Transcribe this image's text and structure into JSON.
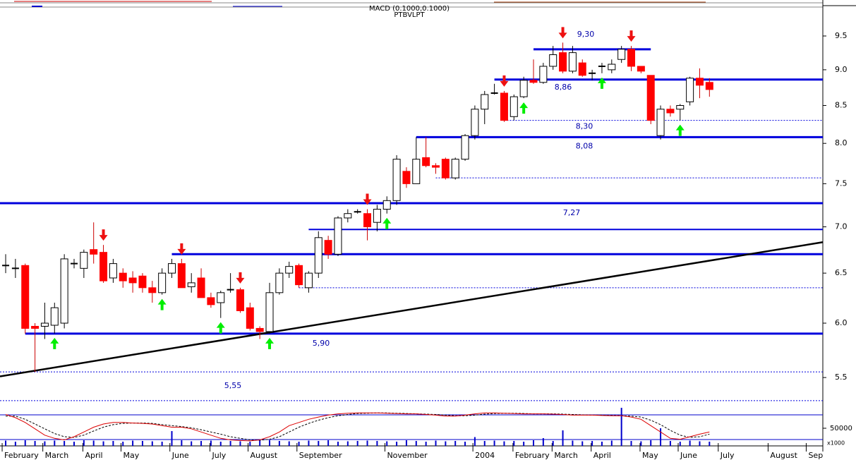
{
  "chart_data": {
    "type": "candlestick",
    "title": "MACD (0.1000,0.1000)",
    "subtitle": "PTBVLPT",
    "x": [
      0,
      1,
      2,
      3,
      4,
      5,
      6,
      7,
      8,
      9,
      10,
      11,
      12,
      13,
      14,
      15,
      16,
      17,
      18,
      19,
      20,
      21,
      22,
      23,
      24,
      25,
      26,
      27,
      28,
      29,
      30,
      31,
      32,
      33,
      34,
      35,
      36,
      37,
      38,
      39,
      40,
      41,
      42,
      43,
      44,
      45,
      46,
      47,
      48,
      49,
      50,
      51,
      52,
      53,
      54,
      55,
      56,
      57,
      58,
      59,
      60,
      61,
      62,
      63,
      64,
      65,
      66,
      67,
      68,
      69,
      70,
      71,
      72
    ],
    "open": [
      6.58,
      6.55,
      6.58,
      5.97,
      5.97,
      5.98,
      6.0,
      6.6,
      6.55,
      6.75,
      6.72,
      6.45,
      6.5,
      6.45,
      6.47,
      6.35,
      6.3,
      6.5,
      6.6,
      6.36,
      6.45,
      6.25,
      6.2,
      6.33,
      6.33,
      6.15,
      5.95,
      5.92,
      6.3,
      6.5,
      6.58,
      6.35,
      6.5,
      6.85,
      6.7,
      7.1,
      7.17,
      7.15,
      7.05,
      7.2,
      7.3,
      7.65,
      7.5,
      7.82,
      7.72,
      7.8,
      7.57,
      7.8,
      8.1,
      8.45,
      8.67,
      8.67,
      8.35,
      8.62,
      8.85,
      8.82,
      9.05,
      9.25,
      8.98,
      9.1,
      8.95,
      9.05,
      9.0,
      9.15,
      9.3,
      9.05,
      8.92,
      8.1,
      8.45,
      8.45,
      8.55,
      8.88,
      8.82
    ],
    "high": [
      6.7,
      6.65,
      6.6,
      6.0,
      6.2,
      6.2,
      6.7,
      6.65,
      6.75,
      7.05,
      6.8,
      6.65,
      6.55,
      6.52,
      6.5,
      6.42,
      6.55,
      6.65,
      6.65,
      6.5,
      6.55,
      6.3,
      6.32,
      6.5,
      6.35,
      6.2,
      5.97,
      6.4,
      6.55,
      6.62,
      6.6,
      6.52,
      6.95,
      6.9,
      7.12,
      7.2,
      7.2,
      7.2,
      7.25,
      7.35,
      7.85,
      7.7,
      8.08,
      8.08,
      7.75,
      7.82,
      7.82,
      8.12,
      8.5,
      8.7,
      8.8,
      8.7,
      8.65,
      8.9,
      9.15,
      9.1,
      9.35,
      9.4,
      9.35,
      9.15,
      9.0,
      9.1,
      9.15,
      9.35,
      9.35,
      9.05,
      8.92,
      8.5,
      8.5,
      8.52,
      8.9,
      9.02,
      8.88
    ],
    "low": [
      6.5,
      6.45,
      5.9,
      5.55,
      5.85,
      5.9,
      5.95,
      6.55,
      6.45,
      6.6,
      6.4,
      6.4,
      6.35,
      6.3,
      6.3,
      6.2,
      6.28,
      6.45,
      6.35,
      6.3,
      6.25,
      6.15,
      6.05,
      6.3,
      6.1,
      5.93,
      5.85,
      5.9,
      6.28,
      6.45,
      6.35,
      6.3,
      6.45,
      6.65,
      6.68,
      7.05,
      7.15,
      6.85,
      6.95,
      7.15,
      7.25,
      7.45,
      7.5,
      7.7,
      7.62,
      7.55,
      7.55,
      7.78,
      8.05,
      8.25,
      8.65,
      8.28,
      8.3,
      8.6,
      8.8,
      8.8,
      9.0,
      8.95,
      8.95,
      8.9,
      8.85,
      8.95,
      8.95,
      9.1,
      8.98,
      8.95,
      8.25,
      8.05,
      8.35,
      8.3,
      8.5,
      8.6,
      8.62
    ],
    "close": [
      6.58,
      6.55,
      5.95,
      5.95,
      6.0,
      6.15,
      6.65,
      6.6,
      6.72,
      6.7,
      6.42,
      6.6,
      6.42,
      6.4,
      6.35,
      6.3,
      6.5,
      6.6,
      6.35,
      6.4,
      6.25,
      6.18,
      6.3,
      6.33,
      6.12,
      5.95,
      5.92,
      6.3,
      6.5,
      6.57,
      6.38,
      6.5,
      6.88,
      6.7,
      7.1,
      7.15,
      7.17,
      7.0,
      7.2,
      7.3,
      7.8,
      7.5,
      7.8,
      7.72,
      7.7,
      7.57,
      7.8,
      8.1,
      8.45,
      8.65,
      8.67,
      8.3,
      8.62,
      8.85,
      8.82,
      9.05,
      9.22,
      8.98,
      9.25,
      8.92,
      8.95,
      9.05,
      9.08,
      9.3,
      9.05,
      8.98,
      8.3,
      8.45,
      8.4,
      8.5,
      8.88,
      8.78,
      8.72
    ],
    "up_color": "#ffffff",
    "down_color": "#ff0000",
    "xlim": [
      -0.58,
      83.6
    ],
    "ylim": [
      5.24,
      9.95
    ],
    "log_scale": true,
    "yticks": [
      5.5,
      {
        "value": 6,
        "label": "6.0"
      },
      6.5,
      {
        "value": 7,
        "label": "7.0"
      },
      7.5,
      {
        "value": 8,
        "label": "8.0"
      },
      8.5,
      {
        "value": 9,
        "label": "9.0"
      },
      9.5
    ],
    "xticks": [
      {
        "value": -0.36,
        "label": "February"
      },
      {
        "value": 3.8,
        "label": "March"
      },
      {
        "value": 7.9,
        "label": "April"
      },
      {
        "value": 11.8,
        "label": "May"
      },
      {
        "value": 16.8,
        "label": "June"
      },
      {
        "value": 20.9,
        "label": "July"
      },
      {
        "value": 24.8,
        "label": "August"
      },
      {
        "value": 29.8,
        "label": "September"
      },
      {
        "value": 38.8,
        "label": "November"
      },
      {
        "value": 47.8,
        "label": "2004"
      },
      {
        "value": 51.9,
        "label": "February"
      },
      {
        "value": 55.9,
        "label": "March"
      },
      {
        "value": 59.9,
        "label": "April"
      },
      {
        "value": 64.9,
        "label": "May"
      },
      {
        "value": 68.8,
        "label": "June"
      },
      {
        "value": 72.9,
        "label": "July"
      },
      {
        "value": 78,
        "label": "August"
      },
      {
        "value": 81.9,
        "label": "Sep"
      }
    ],
    "level_color": "#0000dd",
    "levels": [
      {
        "value": 9.3,
        "label": "9,30",
        "from": 54,
        "to": 66,
        "style": "thick"
      },
      {
        "value": 8.86,
        "label": "8,86",
        "from": 50,
        "style": "thick"
      },
      {
        "value": 8.3,
        "label": "8,30",
        "from": 51,
        "style": "dashed"
      },
      {
        "value": 8.08,
        "label": "8,08",
        "from": 42,
        "style": "thick"
      },
      {
        "value": 7.57,
        "from": 44,
        "style": "dashed"
      },
      {
        "value": 7.27,
        "label": "7,27",
        "style": "thick"
      },
      {
        "value": 6.97,
        "from": 31,
        "style": "thin"
      },
      {
        "value": 6.7,
        "from": 17,
        "style": "thick"
      },
      {
        "value": 6.35,
        "from": 30,
        "style": "dashed"
      },
      {
        "value": 5.9,
        "label": "5,90",
        "from": 2,
        "style": "thick"
      },
      {
        "value": 5.55,
        "label": "5,55",
        "style": "dashed"
      },
      {
        "value": 5.3,
        "style": "dashed"
      }
    ],
    "trendline": {
      "x": [
        -0.58,
        83.6
      ],
      "y": [
        5.51,
        6.83
      ],
      "color": "#000000"
    },
    "signals": {
      "sell": [
        10,
        18,
        24,
        37,
        51,
        57,
        64
      ],
      "buy": [
        5,
        16,
        22,
        27,
        39,
        53,
        61,
        69
      ],
      "sell_color": "#ee1111",
      "buy_color": "#00ee00"
    },
    "volume": [
      15000,
      12000,
      16000,
      14000,
      13000,
      15000,
      14000,
      12000,
      16000,
      15000,
      13000,
      14000,
      12000,
      15000,
      14000,
      13000,
      12000,
      42000,
      16000,
      13000,
      14000,
      15000,
      12000,
      14000,
      13000,
      12000,
      15000,
      16000,
      14000,
      13000,
      12000,
      15000,
      14000,
      16000,
      12000,
      13000,
      14000,
      15000,
      14000,
      13000,
      12000,
      16000,
      14000,
      12000,
      15000,
      13000,
      14000,
      12000,
      25000,
      14000,
      15000,
      13000,
      14000,
      12000,
      16000,
      22000,
      14000,
      44000,
      15000,
      13000,
      14000,
      12000,
      15000,
      108000,
      14000,
      13000,
      16000,
      50000,
      14000,
      12000,
      15000,
      13000,
      12000
    ],
    "volume_color": "#0000cc",
    "volume_ylim": [
      0,
      130000
    ],
    "volume_ticks": [
      {
        "value": 50000,
        "label": "50000"
      }
    ],
    "volume_unit": "x1000",
    "oscillator": {
      "ylim": [
        0,
        100
      ],
      "main": [
        90,
        80,
        65,
        45,
        25,
        15,
        10,
        20,
        35,
        50,
        60,
        65,
        65,
        63,
        62,
        60,
        55,
        50,
        50,
        45,
        35,
        25,
        15,
        10,
        8,
        7,
        10,
        20,
        35,
        55,
        65,
        75,
        82,
        88,
        92,
        94,
        95,
        95,
        95,
        94,
        93,
        92,
        92,
        90,
        88,
        85,
        85,
        88,
        92,
        95,
        95,
        94,
        93,
        92,
        92,
        92,
        91,
        90,
        88,
        88,
        88,
        87,
        86,
        86,
        82,
        75,
        55,
        35,
        15,
        12,
        20,
        28,
        35
      ],
      "signal": [
        85,
        85,
        75,
        60,
        45,
        30,
        20,
        18,
        25,
        38,
        50,
        58,
        62,
        63,
        63,
        62,
        58,
        55,
        52,
        48,
        42,
        35,
        28,
        20,
        15,
        10,
        9,
        12,
        20,
        35,
        50,
        62,
        72,
        80,
        86,
        90,
        93,
        94,
        95,
        95,
        94,
        93,
        92,
        91,
        90,
        88,
        86,
        86,
        88,
        91,
        93,
        94,
        94,
        93,
        92,
        92,
        92,
        91,
        90,
        89,
        88,
        88,
        87,
        86,
        85,
        82,
        72,
        58,
        40,
        25,
        18,
        20,
        28
      ],
      "main_color": "#dd0000",
      "signal_color": "#000000"
    }
  }
}
